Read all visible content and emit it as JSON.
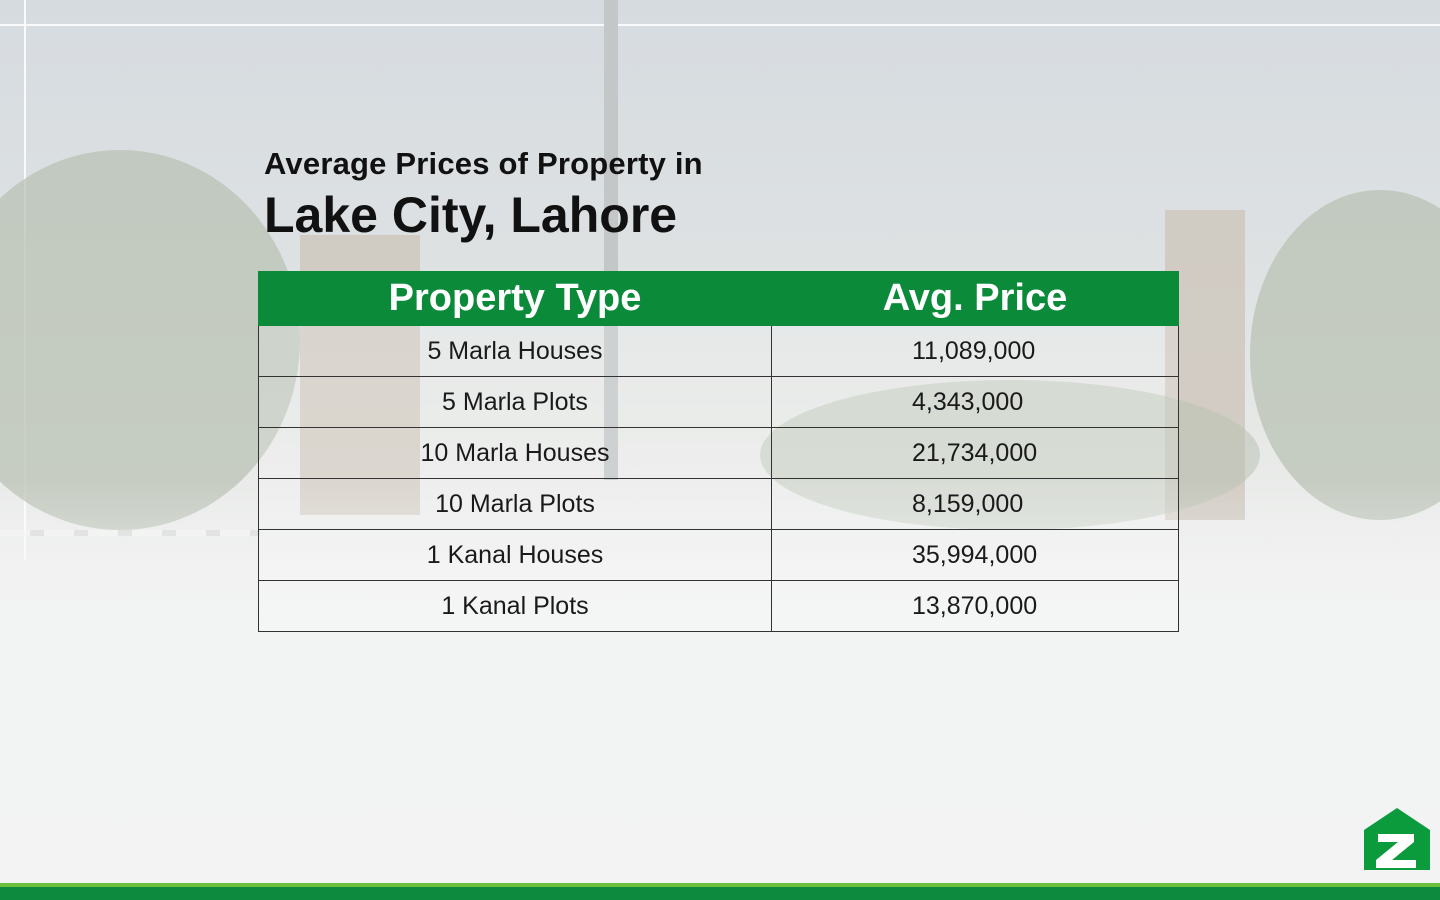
{
  "heading": {
    "line1": "Average Prices of Property in",
    "line2": "Lake City, Lahore"
  },
  "table": {
    "headers": [
      "Property Type",
      "Avg. Price"
    ],
    "rows": [
      {
        "type": "5 Marla Houses",
        "price": "11,089,000"
      },
      {
        "type": "5 Marla Plots",
        "price": "4,343,000"
      },
      {
        "type": "10 Marla Houses",
        "price": "21,734,000"
      },
      {
        "type": "10 Marla Plots",
        "price": "8,159,000"
      },
      {
        "type": "1 Kanal Houses",
        "price": "35,994,000"
      },
      {
        "type": "1 Kanal Plots",
        "price": "13,870,000"
      }
    ]
  },
  "colors": {
    "header_green": "#0b8a3a",
    "bar_light_green": "#6dbf3f",
    "bar_dark_green": "#0d8a3e"
  },
  "logo": {
    "icon": "zameen-house-logo-icon"
  }
}
